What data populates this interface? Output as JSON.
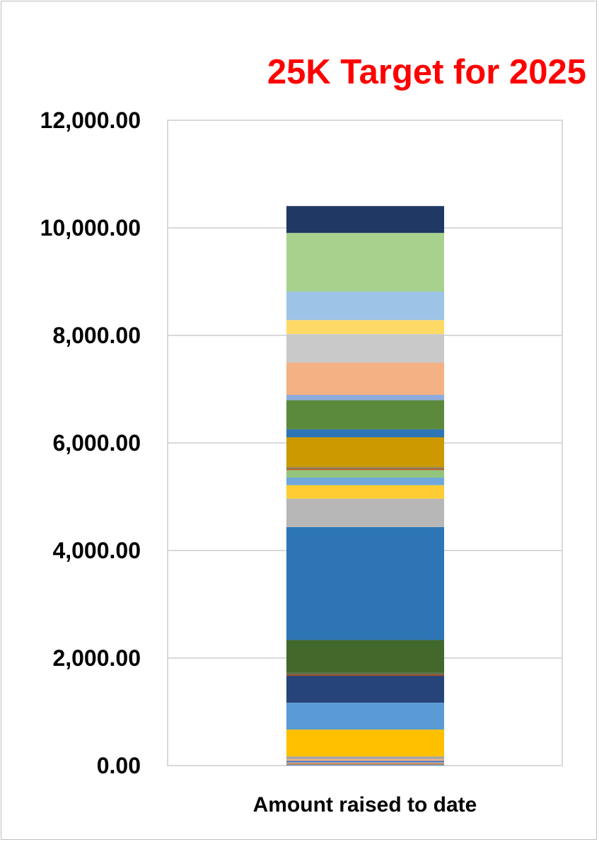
{
  "chart_data": {
    "type": "bar",
    "stacked": true,
    "title": "25K Target for 2025",
    "title_color": "#ff0000",
    "categories": [
      "Amount raised to date"
    ],
    "ylim": [
      0,
      12000
    ],
    "yticks": [
      0,
      2000,
      4000,
      6000,
      8000,
      10000,
      12000
    ],
    "ytick_labels": [
      "0.00",
      "2,000.00",
      "4,000.00",
      "6,000.00",
      "8,000.00",
      "10,000.00",
      "12,000.00"
    ],
    "grid": true,
    "legend": "none",
    "series": [
      {
        "values": [
          20
        ],
        "color": "#5b9bd5"
      },
      {
        "values": [
          20
        ],
        "color": "#ed7d31"
      },
      {
        "values": [
          25
        ],
        "color": "#a5a5a5"
      },
      {
        "values": [
          25
        ],
        "color": "#4472c4"
      },
      {
        "values": [
          30
        ],
        "color": "#f4b183"
      },
      {
        "values": [
          50
        ],
        "color": "#a5a5a5"
      },
      {
        "values": [
          500
        ],
        "color": "#ffc000"
      },
      {
        "values": [
          500
        ],
        "color": "#5b9bd5"
      },
      {
        "values": [
          500
        ],
        "color": "#264478"
      },
      {
        "values": [
          25
        ],
        "color": "#9e480e"
      },
      {
        "values": [
          20
        ],
        "color": "#636363"
      },
      {
        "values": [
          20
        ],
        "color": "#43682b"
      },
      {
        "values": [
          600
        ],
        "color": "#43682b"
      },
      {
        "values": [
          2100
        ],
        "color": "#2e75b6"
      },
      {
        "values": [
          530
        ],
        "color": "#b7b7b7"
      },
      {
        "values": [
          250
        ],
        "color": "#ffcc33"
      },
      {
        "values": [
          140
        ],
        "color": "#6fa8dc"
      },
      {
        "values": [
          140
        ],
        "color": "#93c47d"
      },
      {
        "values": [
          25
        ],
        "color": "#c55a11"
      },
      {
        "values": [
          25
        ],
        "color": "#7f7f7f"
      },
      {
        "values": [
          30
        ],
        "color": "#bf9000"
      },
      {
        "values": [
          530
        ],
        "color": "#cc9900"
      },
      {
        "values": [
          150
        ],
        "color": "#2e75b6"
      },
      {
        "values": [
          540
        ],
        "color": "#5b8a3c"
      },
      {
        "values": [
          100
        ],
        "color": "#8faadc"
      },
      {
        "values": [
          600
        ],
        "color": "#f4b183"
      },
      {
        "values": [
          530
        ],
        "color": "#c9c9c9"
      },
      {
        "values": [
          260
        ],
        "color": "#ffd966"
      },
      {
        "values": [
          530
        ],
        "color": "#9dc3e6"
      },
      {
        "values": [
          1090
        ],
        "color": "#a9d18e"
      },
      {
        "values": [
          500
        ],
        "color": "#203864"
      }
    ]
  }
}
